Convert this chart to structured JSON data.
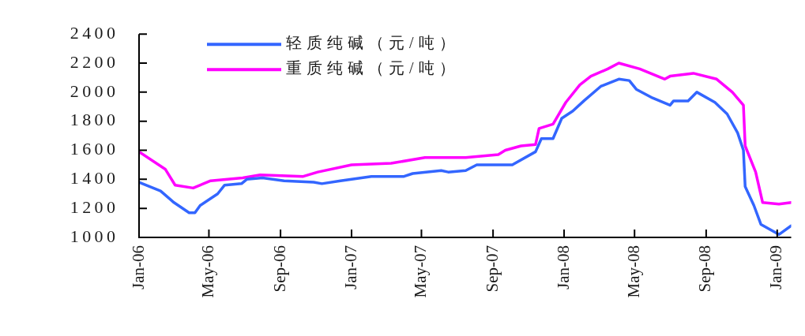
{
  "chart_data": {
    "type": "line",
    "xlim": [
      "2006-01-01",
      "2009-01-25"
    ],
    "xticks": [
      {
        "value": "2006-01-01",
        "label": "Jan-06"
      },
      {
        "value": "2006-05-01",
        "label": "May-06"
      },
      {
        "value": "2006-09-01",
        "label": "Sep-06"
      },
      {
        "value": "2007-01-01",
        "label": "Jan-07"
      },
      {
        "value": "2007-05-01",
        "label": "May-07"
      },
      {
        "value": "2007-09-01",
        "label": "Sep-07"
      },
      {
        "value": "2008-01-01",
        "label": "Jan-08"
      },
      {
        "value": "2008-05-01",
        "label": "May-08"
      },
      {
        "value": "2008-09-01",
        "label": "Sep-08"
      },
      {
        "value": "2009-01-01",
        "label": "Jan-09"
      }
    ],
    "ylim": [
      1000,
      2400
    ],
    "yticks": [
      1000,
      1200,
      1400,
      1600,
      1800,
      2000,
      2200,
      2400
    ],
    "grid": false,
    "legend": "top left",
    "marker": "none",
    "line_style": "solid",
    "series": [
      {
        "name": "轻质纯碱（元/吨）",
        "color": "#3366ff",
        "x": [
          "2006-01-01",
          "2006-02-07",
          "2006-03-02",
          "2006-03-28",
          "2006-04-07",
          "2006-04-16",
          "2006-05-16",
          "2006-05-28",
          "2006-06-26",
          "2006-07-05",
          "2006-08-01",
          "2006-09-07",
          "2006-10-28",
          "2006-11-11",
          "2006-12-13",
          "2007-02-04",
          "2007-04-01",
          "2007-04-16",
          "2007-06-04",
          "2007-06-16",
          "2007-07-16",
          "2007-08-04",
          "2007-10-04",
          "2007-11-13",
          "2007-11-23",
          "2007-12-13",
          "2007-12-28",
          "2008-01-16",
          "2008-02-04",
          "2008-03-04",
          "2008-04-04",
          "2008-04-22",
          "2008-05-04",
          "2008-06-01",
          "2008-07-01",
          "2008-07-07",
          "2008-08-01",
          "2008-08-16",
          "2008-09-16",
          "2008-10-07",
          "2008-10-25",
          "2008-11-04",
          "2008-11-07",
          "2008-11-22",
          "2008-12-04",
          "2009-01-04",
          "2009-01-25"
        ],
        "values": [
          1380,
          1320,
          1240,
          1170,
          1170,
          1220,
          1300,
          1360,
          1370,
          1400,
          1410,
          1390,
          1380,
          1370,
          1390,
          1420,
          1420,
          1440,
          1460,
          1450,
          1460,
          1500,
          1500,
          1590,
          1680,
          1680,
          1820,
          1870,
          1940,
          2040,
          2090,
          2080,
          2020,
          1960,
          1910,
          1940,
          1940,
          2000,
          1930,
          1850,
          1720,
          1600,
          1350,
          1220,
          1090,
          1020,
          1080
        ]
      },
      {
        "name": "重质纯碱（元/吨）",
        "color": "#ff00ff",
        "x": [
          "2006-01-01",
          "2006-02-15",
          "2006-03-04",
          "2006-04-04",
          "2006-05-04",
          "2006-06-28",
          "2006-07-28",
          "2006-10-10",
          "2006-11-04",
          "2007-01-01",
          "2007-03-10",
          "2007-05-07",
          "2007-07-16",
          "2007-09-10",
          "2007-09-22",
          "2007-10-19",
          "2007-11-13",
          "2007-11-19",
          "2007-12-13",
          "2008-01-04",
          "2008-01-28",
          "2008-02-16",
          "2008-03-16",
          "2008-04-04",
          "2008-05-10",
          "2008-06-22",
          "2008-07-01",
          "2008-08-10",
          "2008-09-19",
          "2008-10-16",
          "2008-11-04",
          "2008-11-07",
          "2008-11-25",
          "2008-12-07",
          "2009-01-04",
          "2009-01-25"
        ],
        "values": [
          1590,
          1470,
          1360,
          1340,
          1390,
          1410,
          1430,
          1420,
          1450,
          1500,
          1510,
          1550,
          1550,
          1570,
          1600,
          1630,
          1640,
          1750,
          1780,
          1930,
          2050,
          2110,
          2160,
          2200,
          2160,
          2090,
          2110,
          2130,
          2090,
          2000,
          1910,
          1630,
          1450,
          1240,
          1230,
          1240
        ]
      }
    ]
  }
}
